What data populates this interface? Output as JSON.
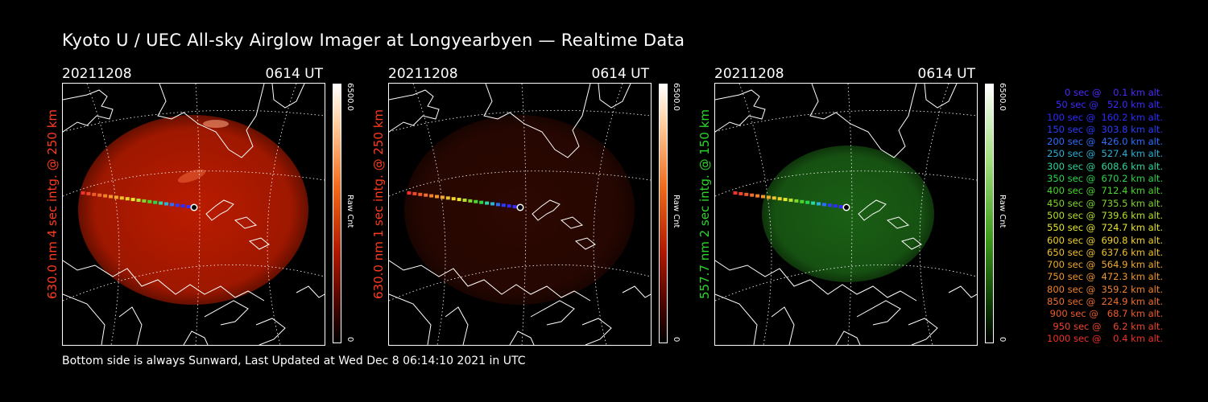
{
  "title": "Kyoto U / UEC All-sky Airglow Imager at Longyearbyen — Realtime Data",
  "panels": [
    {
      "date": "20211208",
      "time": "0614 UT",
      "label": "630.0 nm  4 sec intg. @ 250 km",
      "label_color": "#ff3a1e",
      "cbar_max": "6500.0",
      "cbar_min": "0",
      "cbar_unit": "Raw Cnt",
      "tint": "#c41d00",
      "brightness": 0.95
    },
    {
      "date": "20211208",
      "time": "0614 UT",
      "label": "630.0 nm  1 sec intg. @ 250 km",
      "label_color": "#ff3a1e",
      "cbar_max": "6500.0",
      "cbar_min": "0",
      "cbar_unit": "Raw Cnt",
      "tint": "#4a0d02",
      "brightness": 0.6
    },
    {
      "date": "20211208",
      "time": "0614 UT",
      "label": "557.7 nm  2 sec intg. @ 150 km",
      "label_color": "#2bd62b",
      "cbar_max": "6500.0",
      "cbar_min": "0",
      "cbar_unit": "Raw Cnt",
      "tint": "#1d6a17",
      "brightness": 0.9
    }
  ],
  "footer": "Bottom side is always Sunward, Last Updated at Wed Dec  8 06:14:10 2021 in UTC",
  "legend": [
    {
      "text": "   0 sec @    0.1 km alt.",
      "color": "#4b2cff"
    },
    {
      "text": "  50 sec @   52.0 km alt.",
      "color": "#3a2bff"
    },
    {
      "text": " 100 sec @  160.2 km alt.",
      "color": "#2b2bff"
    },
    {
      "text": " 150 sec @  303.8 km alt.",
      "color": "#2b3cff"
    },
    {
      "text": " 200 sec @  426.0 km alt.",
      "color": "#2b6eff"
    },
    {
      "text": " 250 sec @  527.4 km alt.",
      "color": "#2bb0d6"
    },
    {
      "text": " 300 sec @  608.6 km alt.",
      "color": "#2bd6a0"
    },
    {
      "text": " 350 sec @  670.2 km alt.",
      "color": "#2bd64a"
    },
    {
      "text": " 400 sec @  712.4 km alt.",
      "color": "#4ad62b"
    },
    {
      "text": " 450 sec @  735.5 km alt.",
      "color": "#7ed62b"
    },
    {
      "text": " 500 sec @  739.6 km alt.",
      "color": "#b6e02b"
    },
    {
      "text": " 550 sec @  724.7 km alt.",
      "color": "#e6e62b"
    },
    {
      "text": " 600 sec @  690.8 km alt.",
      "color": "#f0d22b"
    },
    {
      "text": " 650 sec @  637.6 km alt.",
      "color": "#f0c02b"
    },
    {
      "text": " 700 sec @  564.9 km alt.",
      "color": "#f0aa2b"
    },
    {
      "text": " 750 sec @  472.3 km alt.",
      "color": "#f0962b"
    },
    {
      "text": " 800 sec @  359.2 km alt.",
      "color": "#f0822b"
    },
    {
      "text": " 850 sec @  224.9 km alt.",
      "color": "#f06e2b"
    },
    {
      "text": " 900 sec @   68.7 km alt.",
      "color": "#f05a2b"
    },
    {
      "text": " 950 sec @    6.2 km alt.",
      "color": "#f0462b"
    },
    {
      "text": "1000 sec @    0.4 km alt.",
      "color": "#f0322b"
    }
  ]
}
